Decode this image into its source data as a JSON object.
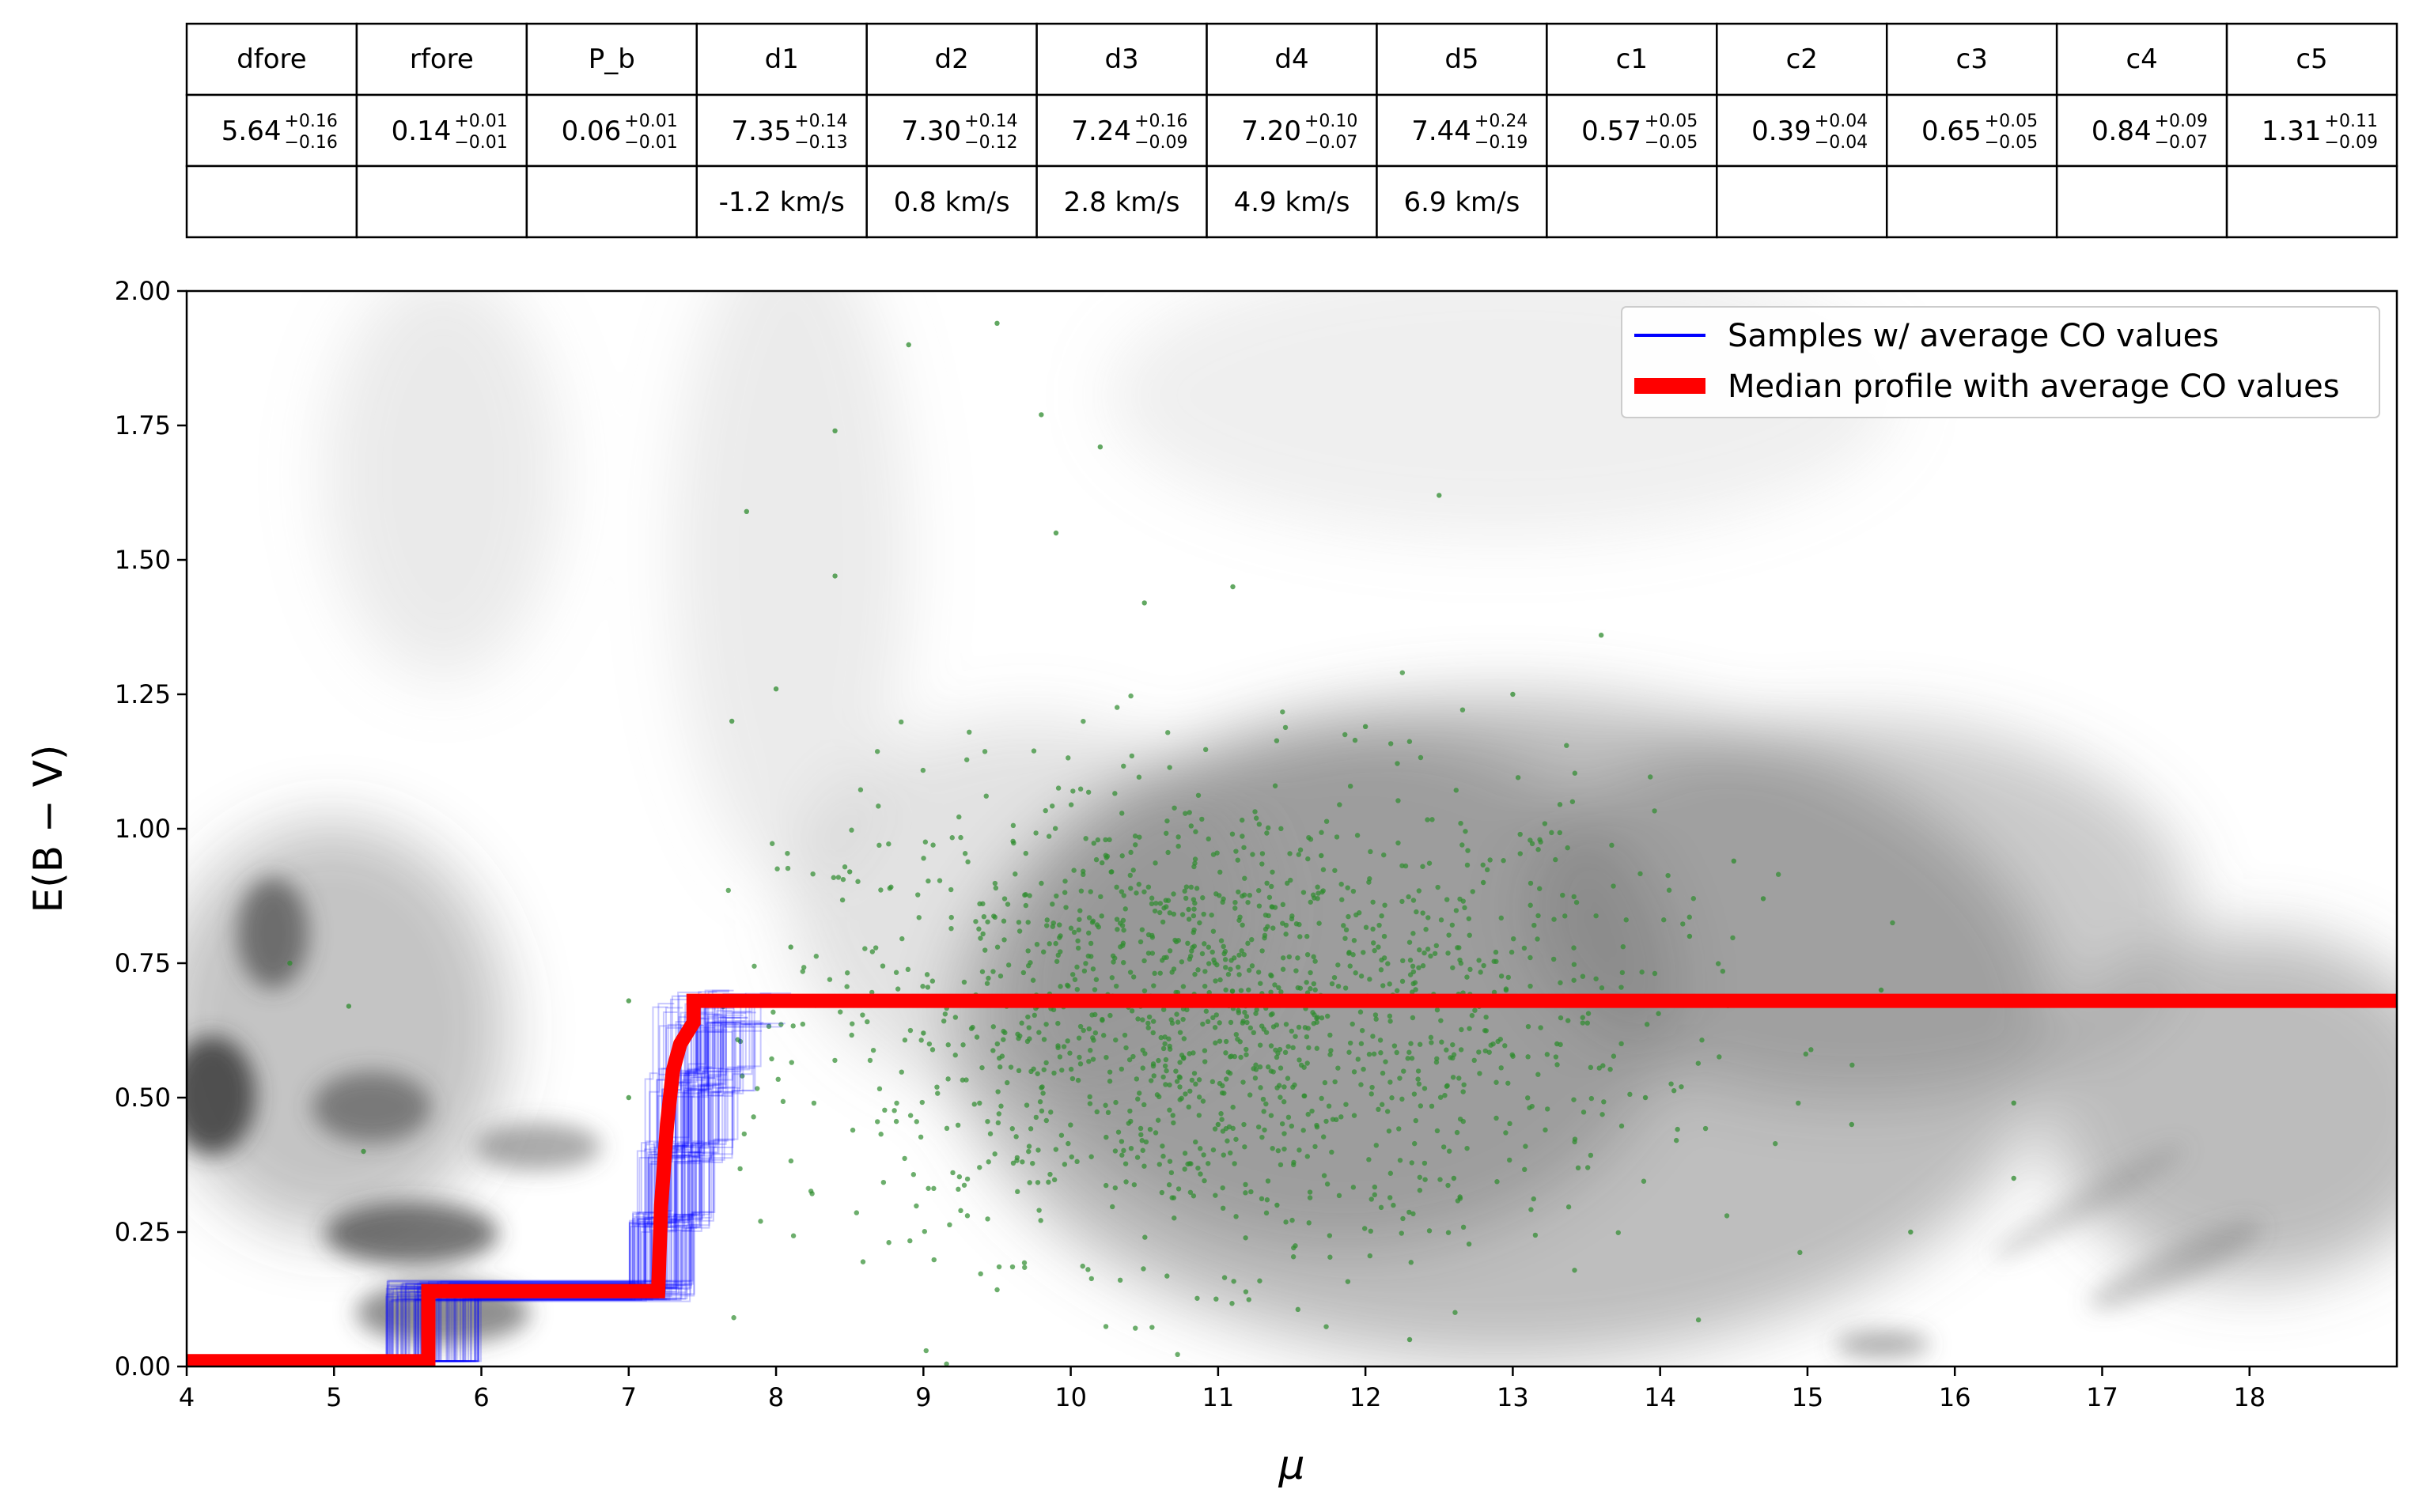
{
  "table": {
    "headers": [
      "dfore",
      "rfore",
      "P_b",
      "d1",
      "d2",
      "d3",
      "d4",
      "d5",
      "c1",
      "c2",
      "c3",
      "c4",
      "c5"
    ],
    "values": [
      {
        "main": "5.64",
        "sup": "+0.16",
        "sub": "−0.16"
      },
      {
        "main": "0.14",
        "sup": "+0.01",
        "sub": "−0.01"
      },
      {
        "main": "0.06",
        "sup": "+0.01",
        "sub": "−0.01"
      },
      {
        "main": "7.35",
        "sup": "+0.14",
        "sub": "−0.13"
      },
      {
        "main": "7.30",
        "sup": "+0.14",
        "sub": "−0.12"
      },
      {
        "main": "7.24",
        "sup": "+0.16",
        "sub": "−0.09"
      },
      {
        "main": "7.20",
        "sup": "+0.10",
        "sub": "−0.07"
      },
      {
        "main": "7.44",
        "sup": "+0.24",
        "sub": "−0.19"
      },
      {
        "main": "0.57",
        "sup": "+0.05",
        "sub": "−0.05"
      },
      {
        "main": "0.39",
        "sup": "+0.04",
        "sub": "−0.04"
      },
      {
        "main": "0.65",
        "sup": "+0.05",
        "sub": "−0.05"
      },
      {
        "main": "0.84",
        "sup": "+0.09",
        "sub": "−0.07"
      },
      {
        "main": "1.31",
        "sup": "+0.11",
        "sub": "−0.09"
      }
    ],
    "velocities": [
      "",
      "",
      "",
      "-1.2 km/s",
      "0.8 km/s",
      "2.8 km/s",
      "4.9 km/s",
      "6.9 km/s",
      "",
      "",
      "",
      "",
      ""
    ]
  },
  "chart_data": {
    "type": "line",
    "xlabel": "μ",
    "ylabel": "E(B − V)",
    "xlim": [
      4,
      19
    ],
    "ylim": [
      0,
      2
    ],
    "xticks": [
      "4",
      "5",
      "6",
      "7",
      "8",
      "9",
      "10",
      "11",
      "12",
      "13",
      "14",
      "15",
      "16",
      "17",
      "18"
    ],
    "yticks": [
      "0.00",
      "0.25",
      "0.50",
      "0.75",
      "1.00",
      "1.25",
      "1.50",
      "1.75",
      "2.00"
    ],
    "legend_position": "top-right",
    "colors": {
      "samples": "#0000ff",
      "median": "#ff0000",
      "stars": "#2e8b2e",
      "density": "#808080"
    },
    "series": [
      {
        "name": "Samples  w/ average CO values",
        "kind": "step-samples",
        "profile": {
          "x": [
            4.0,
            5.6,
            7.2,
            7.45,
            19.0
          ],
          "y": [
            0.01,
            0.14,
            0.14,
            0.68,
            0.68
          ]
        }
      },
      {
        "name": "Median profile with average CO values",
        "x": [
          4.0,
          5.64,
          5.64,
          7.2,
          7.22,
          7.26,
          7.3,
          7.35,
          7.44,
          7.44,
          19.0
        ],
        "y": [
          0.01,
          0.01,
          0.14,
          0.14,
          0.3,
          0.45,
          0.55,
          0.6,
          0.64,
          0.68,
          0.68
        ]
      }
    ],
    "scatter_sample": {
      "x": [
        4.7,
        5.1,
        5.2,
        7.0,
        7.0,
        7.8,
        7.7,
        8.0,
        8.1,
        8.4,
        8.4,
        8.5,
        8.9,
        9.0,
        9.5,
        9.8,
        9.9,
        10.2,
        10.5,
        10.8,
        11.0,
        11.1,
        11.4,
        11.7,
        12.0,
        12.3,
        12.5,
        12.6,
        12.8,
        13.0,
        13.3,
        13.6,
        13.9,
        14.2,
        14.5,
        14.7,
        15.1,
        15.3,
        15.5,
        15.7,
        16.4,
        16.4
      ],
      "y": [
        0.75,
        0.67,
        0.4,
        0.68,
        0.5,
        1.59,
        1.2,
        1.26,
        0.78,
        1.74,
        1.47,
        0.92,
        1.9,
        0.62,
        1.94,
        1.77,
        1.55,
        1.71,
        1.42,
        0.85,
        0.45,
        1.45,
        0.3,
        0.95,
        1.19,
        0.05,
        1.62,
        0.35,
        0.9,
        1.25,
        0.6,
        1.36,
        0.5,
        0.8,
        0.94,
        0.87,
        0.68,
        0.45,
        0.7,
        0.25,
        0.49,
        0.35
      ]
    }
  }
}
